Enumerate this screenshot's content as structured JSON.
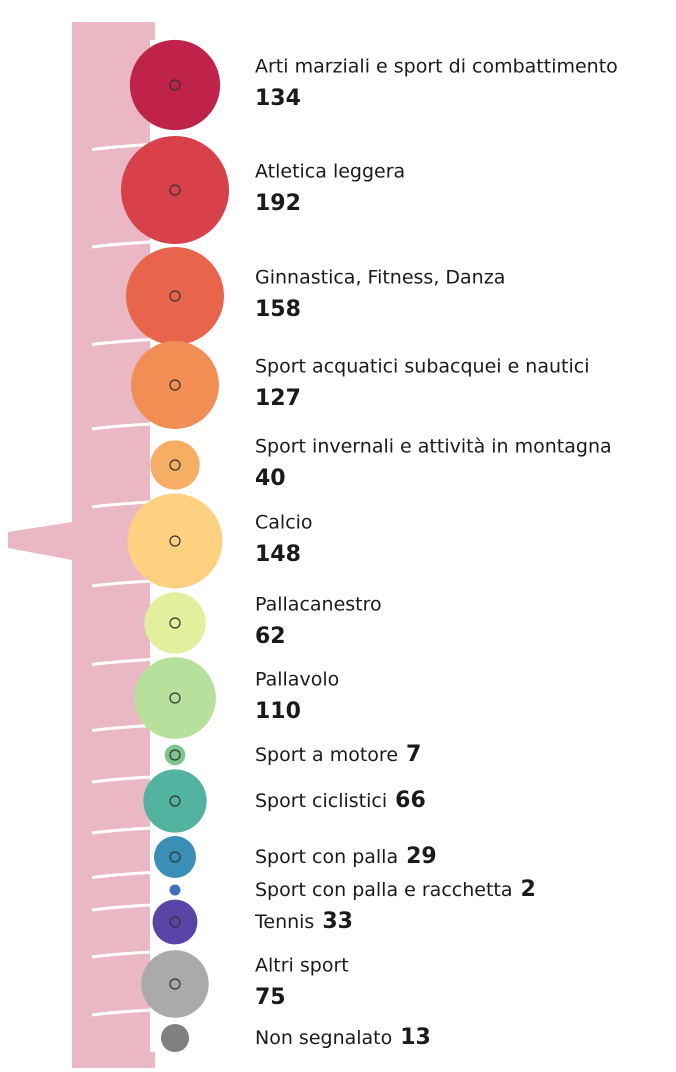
{
  "chart_data": {
    "type": "bubble",
    "categories": [
      "Arti marziali e sport di combattimento",
      "Atletica leggera",
      "Ginnastica, Fitness, Danza",
      "Sport acquatici subacquei e nautici",
      "Sport invernali e attività in montagna",
      "Calcio",
      "Pallacanestro",
      "Pallavolo",
      "Sport a motore",
      "Sport ciclistici",
      "Sport con palla",
      "Sport con palla e racchetta",
      "Tennis",
      "Altri sport",
      "Non segnalato"
    ],
    "values": [
      134,
      192,
      158,
      127,
      40,
      148,
      62,
      110,
      7,
      66,
      29,
      2,
      33,
      75,
      13
    ],
    "colors": [
      "#c0234a",
      "#d9414a",
      "#e8654b",
      "#f28d54",
      "#f6ad64",
      "#fdd180",
      "#e2ef9d",
      "#b6e09b",
      "#7dc58c",
      "#52b3a0",
      "#3a8fb7",
      "#3b6fc1",
      "#5a44a8",
      "#aaaaaa",
      "#808080"
    ]
  }
}
